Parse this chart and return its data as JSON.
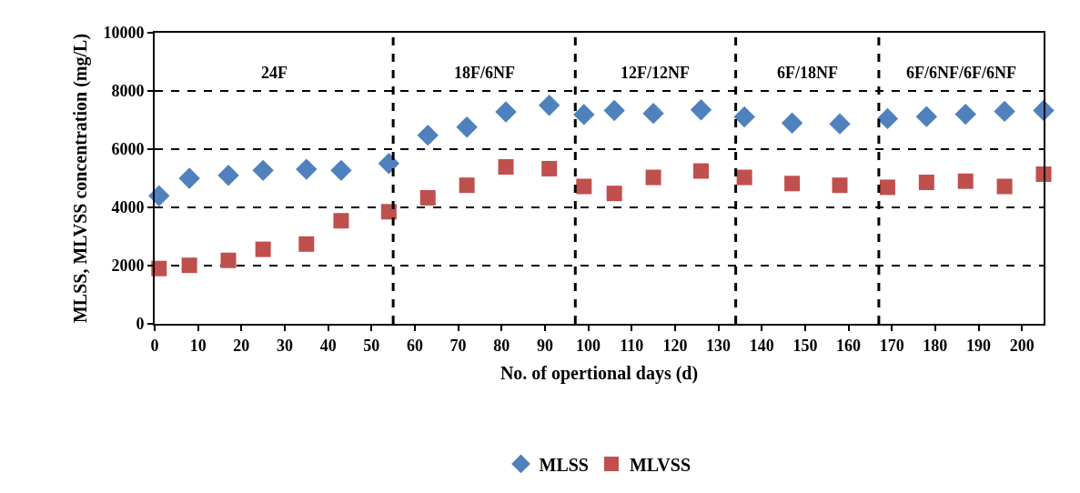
{
  "chart_data": {
    "type": "scatter",
    "xlabel": "No. of opertional days (d)",
    "ylabel": "MLSS, MLVSS concentration (mg/L)",
    "x": [
      1,
      8,
      17,
      25,
      35,
      43,
      54,
      63,
      72,
      81,
      91,
      99,
      106,
      115,
      126,
      136,
      147,
      158,
      169,
      178,
      187,
      196,
      205
    ],
    "series": [
      {
        "name": "MLSS",
        "color": "#4f81bd",
        "marker": "diamond",
        "values": [
          4400,
          5000,
          5100,
          5270,
          5310,
          5270,
          5510,
          6480,
          6760,
          7280,
          7510,
          7190,
          7330,
          7230,
          7350,
          7110,
          6900,
          6870,
          7050,
          7120,
          7200,
          7300,
          7330
        ]
      },
      {
        "name": "MLVSS",
        "color": "#c0504d",
        "marker": "square",
        "values": [
          1900,
          2010,
          2180,
          2560,
          2740,
          3540,
          3850,
          4330,
          4760,
          5390,
          5330,
          4720,
          4480,
          5030,
          5250,
          5030,
          4820,
          4760,
          4690,
          4860,
          4900,
          4720,
          5140
        ]
      }
    ],
    "xlim": [
      0,
      205
    ],
    "xticks": [
      0,
      10,
      20,
      30,
      40,
      50,
      60,
      70,
      80,
      90,
      100,
      110,
      120,
      130,
      140,
      150,
      160,
      170,
      180,
      190,
      200
    ],
    "ylim": [
      0,
      10000
    ],
    "yticks": [
      0,
      2000,
      4000,
      6000,
      8000,
      10000
    ],
    "grid": "y",
    "legend": "bottom",
    "ref_lines": [
      {
        "axis": "x",
        "value": 55,
        "line_style": "dashed",
        "color": "#000000"
      },
      {
        "axis": "x",
        "value": 97,
        "line_style": "dashed",
        "color": "#000000"
      },
      {
        "axis": "x",
        "value": 134,
        "line_style": "dashed",
        "color": "#000000"
      },
      {
        "axis": "x",
        "value": 167,
        "line_style": "dashed",
        "color": "#000000"
      }
    ],
    "annotations": [
      "24F",
      "18F/6NF",
      "12F/12NF",
      "6F/18NF",
      "6F/6NF/6F/6NF"
    ]
  }
}
